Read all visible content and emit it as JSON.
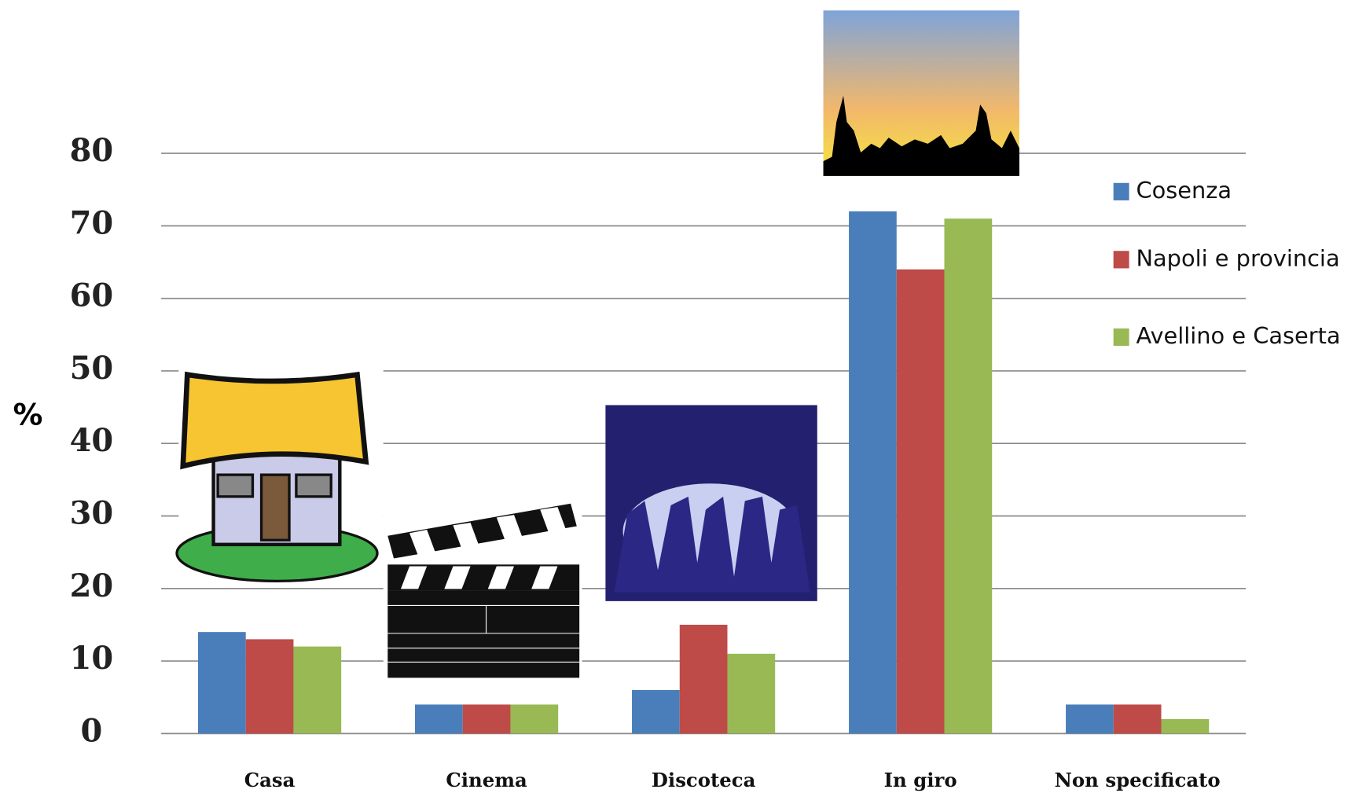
{
  "chart_data": {
    "type": "bar",
    "y_label": "%",
    "categories": [
      "Casa",
      "Cinema",
      "Discoteca",
      "In giro",
      "Non specificato"
    ],
    "series": [
      {
        "name": "Cosenza",
        "color": "#4a7ebb",
        "values": [
          14,
          4,
          6,
          72,
          4
        ]
      },
      {
        "name": "Napoli e provincia",
        "color": "#be4b48",
        "values": [
          13,
          4,
          15,
          64,
          4
        ]
      },
      {
        "name": "Avellino e Caserta",
        "color": "#98b954",
        "values": [
          12,
          4,
          11,
          71,
          2
        ]
      }
    ],
    "ylim": [
      0,
      80
    ],
    "yticks": [
      0,
      10,
      20,
      30,
      40,
      50,
      60,
      70,
      80
    ],
    "grid": true,
    "legend": "right"
  }
}
